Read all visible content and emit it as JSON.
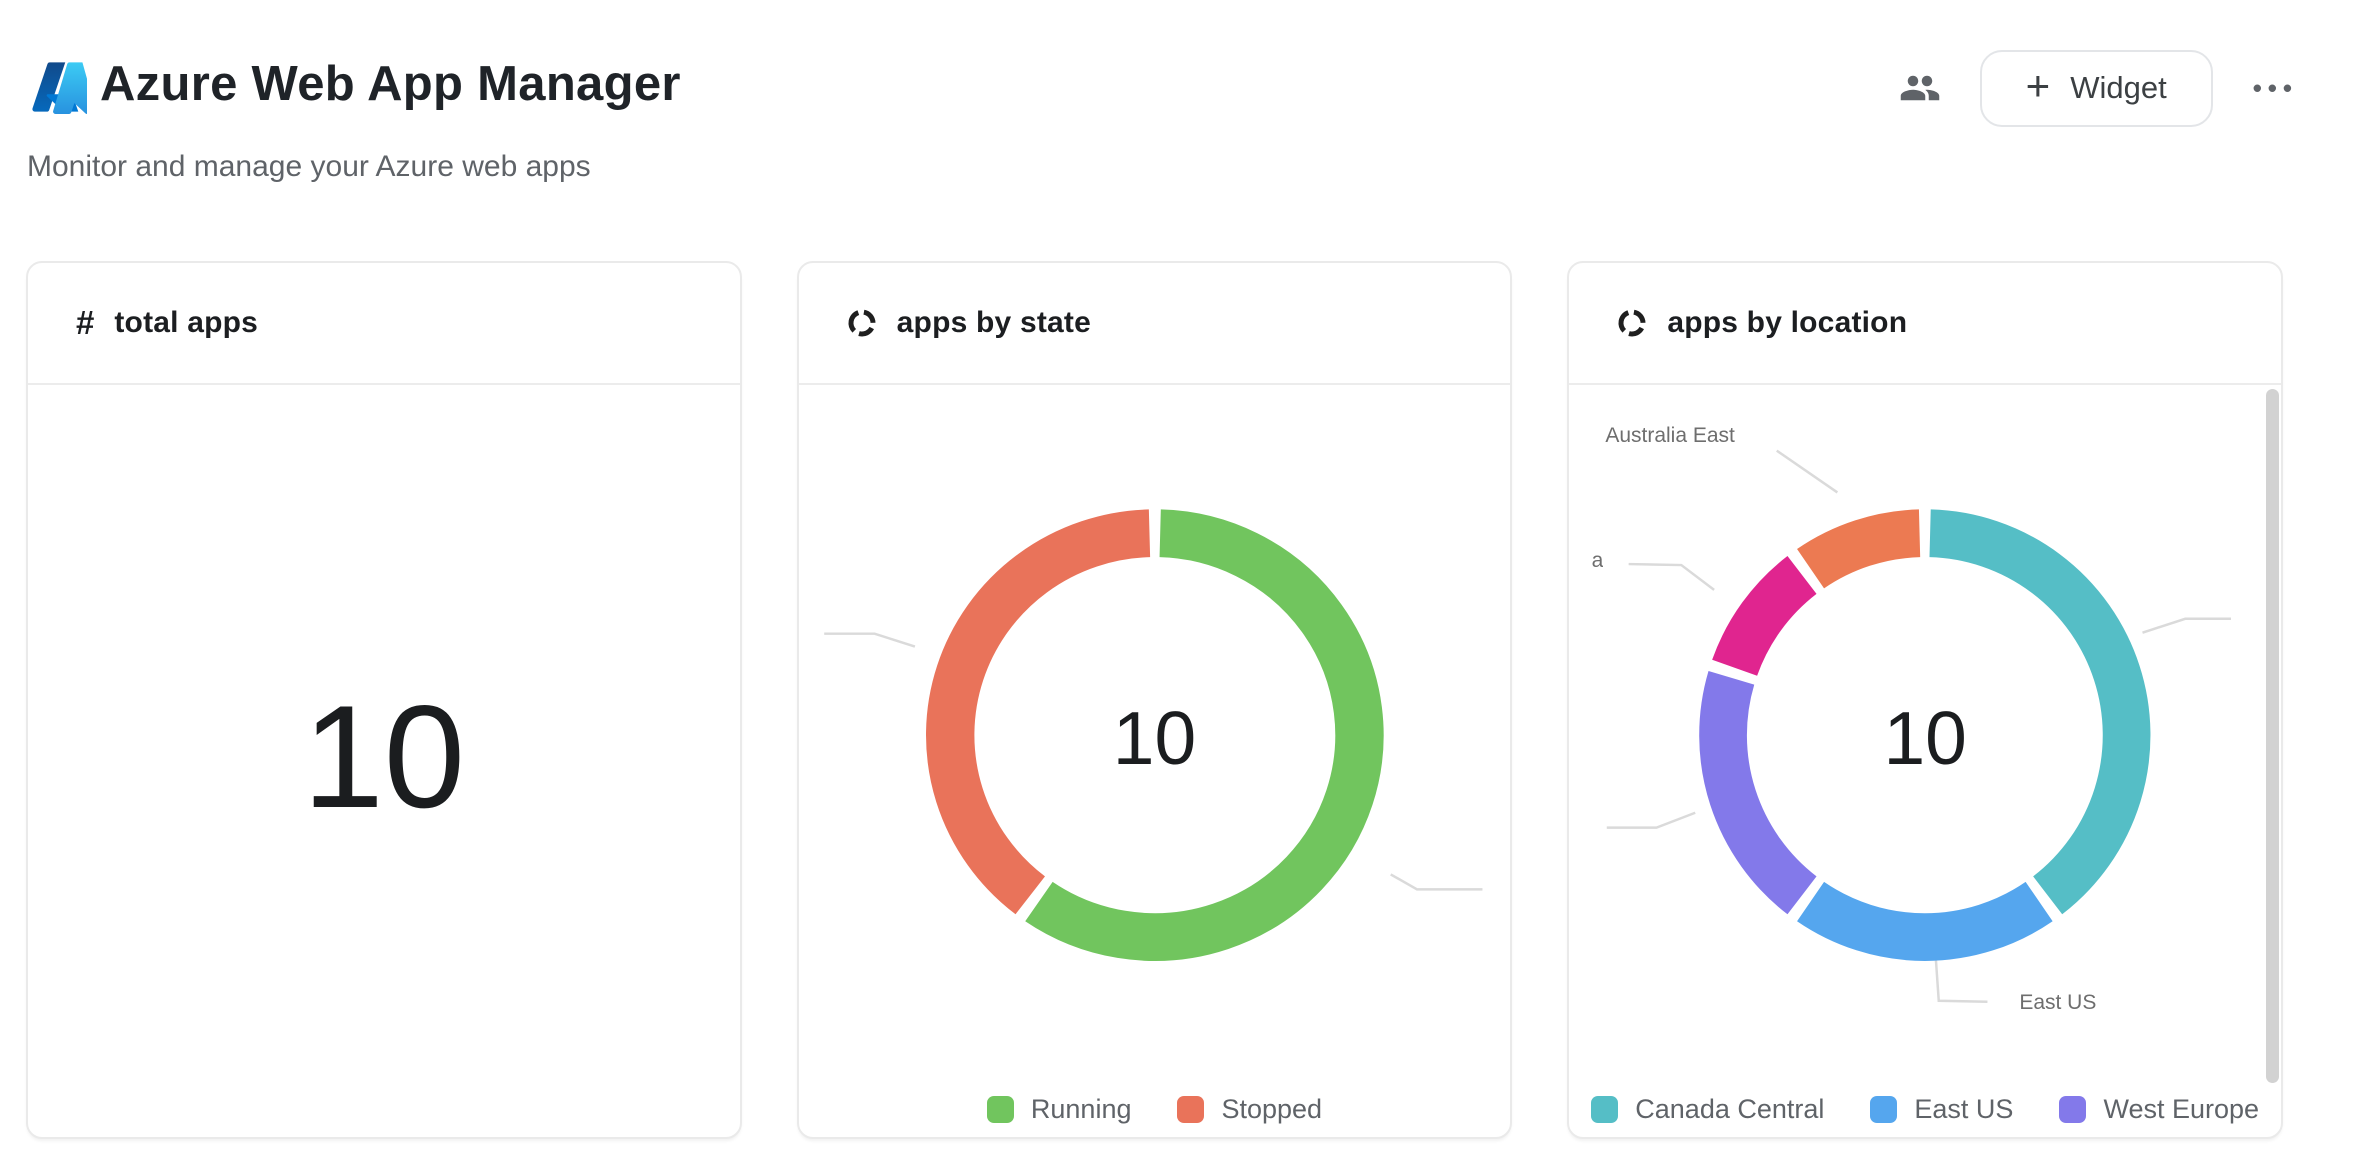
{
  "header": {
    "title": "Azure Web App Manager",
    "subtitle": "Monitor and manage your Azure web apps",
    "widget_button": {
      "plus": "+",
      "label": "Widget"
    },
    "more_label": "•••"
  },
  "cards": [
    {
      "id": "total-apps",
      "icon": "#",
      "title": "total apps",
      "value": "10"
    },
    {
      "id": "apps-by-state",
      "title": "apps by state"
    },
    {
      "id": "apps-by-location",
      "title": "apps by location"
    }
  ],
  "chart_data": [
    {
      "type": "pie",
      "title": "apps by state",
      "donut": true,
      "total": 10,
      "center_label": "10",
      "labels": [
        "Running",
        "Stopped"
      ],
      "values": [
        6,
        4
      ],
      "colors": [
        "#71c55e",
        "#e9735a"
      ],
      "legend": [
        "Running",
        "Stopped"
      ],
      "legend_position": "bottom",
      "start_angle_deg": 0,
      "pad_angle_deg": 3
    },
    {
      "type": "pie",
      "title": "apps by location",
      "donut": true,
      "total": 10,
      "center_label": "10",
      "labels": [
        "Canada Central",
        "East US",
        "West Europe",
        "a",
        "Australia East"
      ],
      "values": [
        4,
        2,
        2,
        1,
        1
      ],
      "colors": [
        "#55bec6",
        "#55a6ee",
        "#8379ea",
        "#e0258f",
        "#ec7a52"
      ],
      "legend": [
        "Canada Central",
        "East US",
        "West Europe"
      ],
      "legend_position": "bottom",
      "start_angle_deg": 0,
      "pad_angle_deg": 3,
      "callouts": {
        "australia_east": "Australia East",
        "east_us": "East US",
        "clipped_fragment": "a"
      }
    }
  ]
}
